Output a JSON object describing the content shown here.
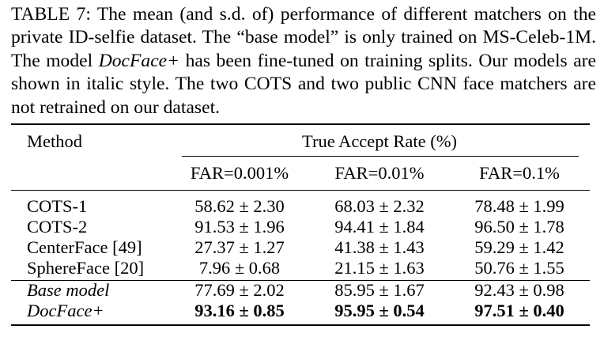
{
  "caption": {
    "prefix": "TABLE 7: The mean (and s.d. of) performance of different matchers on the private ID-selfie dataset. The “base model” is only trained on MS-Celeb-1M. The model ",
    "model_name": "DocFace+",
    "suffix": " has been fine-tuned on training splits. Our models are shown in italic style. The two COTS and two public CNN face matchers are not retrained on our dataset."
  },
  "table": {
    "header": {
      "method": "Method",
      "group": "True Accept Rate (%)",
      "far": [
        "FAR=0.001%",
        "FAR=0.01%",
        "FAR=0.1%"
      ]
    },
    "rows": [
      {
        "method": "COTS-1",
        "values": [
          "58.62 ± 2.30",
          "68.03 ± 2.32",
          "78.48 ± 1.99"
        ]
      },
      {
        "method": "COTS-2",
        "values": [
          "91.53 ± 1.96",
          "94.41 ± 1.84",
          "96.50 ± 1.78"
        ]
      },
      {
        "method": "CenterFace [49]",
        "values": [
          "27.37 ± 1.27",
          "41.38 ± 1.43",
          "59.29 ± 1.42"
        ]
      },
      {
        "method": "SphereFace [20]",
        "values": [
          "7.96 ± 0.68",
          "21.15 ± 1.63",
          "50.76 ± 1.55"
        ]
      },
      {
        "method": "Base model",
        "values": [
          "77.69 ± 2.02",
          "85.95 ± 1.67",
          "92.43 ± 0.98"
        ]
      },
      {
        "method": "DocFace+",
        "values": [
          "93.16 ± 0.85",
          "95.95 ± 0.54",
          "97.51 ± 0.40"
        ]
      }
    ]
  }
}
